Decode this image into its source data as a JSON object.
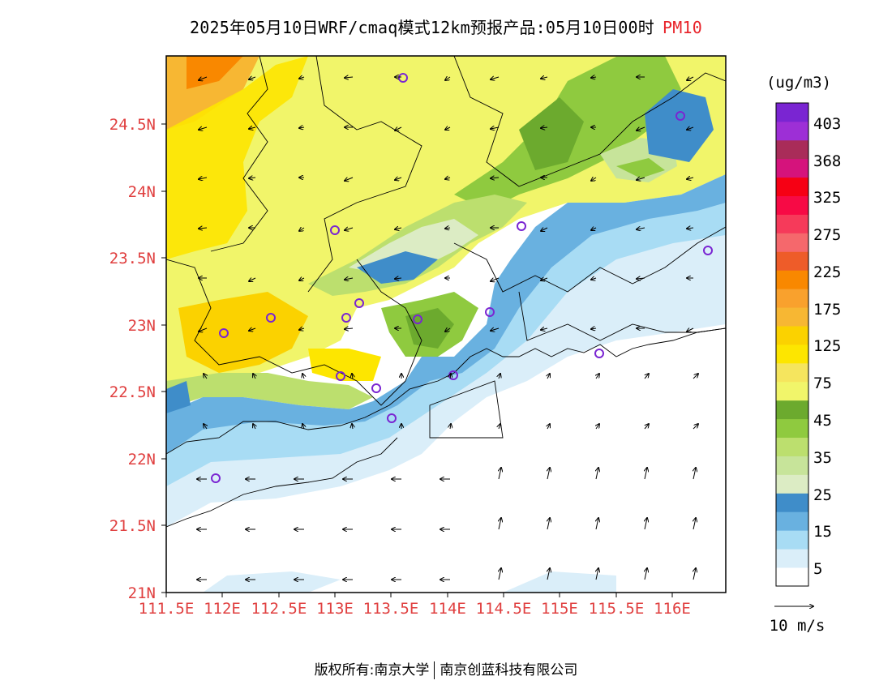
{
  "title": {
    "text": "2025年05月10日WRF/cmaq模式12km预报产品:05月10日00时",
    "pollutant": "PM10"
  },
  "axes": {
    "lat_labels": [
      "24.5N",
      "24N",
      "23.5N",
      "23N",
      "22.5N",
      "22N",
      "21.5N",
      "21N"
    ],
    "lon_labels": [
      "111.5E",
      "112E",
      "112.5E",
      "113E",
      "113.5E",
      "114E",
      "114.5E",
      "115E",
      "115.5E",
      "116E"
    ]
  },
  "colorbar": {
    "unit": "(ug/m3)",
    "colors": [
      "#ffffff",
      "#daeef9",
      "#a8dcf4",
      "#69b1e0",
      "#3f8dc9",
      "#dcecc4",
      "#c7e49a",
      "#bcdf6e",
      "#8fca3f",
      "#6caa2e",
      "#f1f56a",
      "#f5e55e",
      "#fde600",
      "#fbd200",
      "#f7b733",
      "#f9a12d",
      "#f98800",
      "#ee5c29",
      "#f5686c",
      "#f63a5a",
      "#f70a45",
      "#f60014",
      "#d5137c",
      "#a92c59",
      "#9d2fd6",
      "#7a25d2"
    ],
    "labels": [
      "5",
      "15",
      "25",
      "35",
      "45",
      "75",
      "125",
      "175",
      "225",
      "275",
      "325",
      "368",
      "403"
    ]
  },
  "wind_legend": {
    "label": "10 m/s"
  },
  "footer": {
    "left": "版权所有:南京大学",
    "right": "南京创蓝科技有限公司"
  }
}
